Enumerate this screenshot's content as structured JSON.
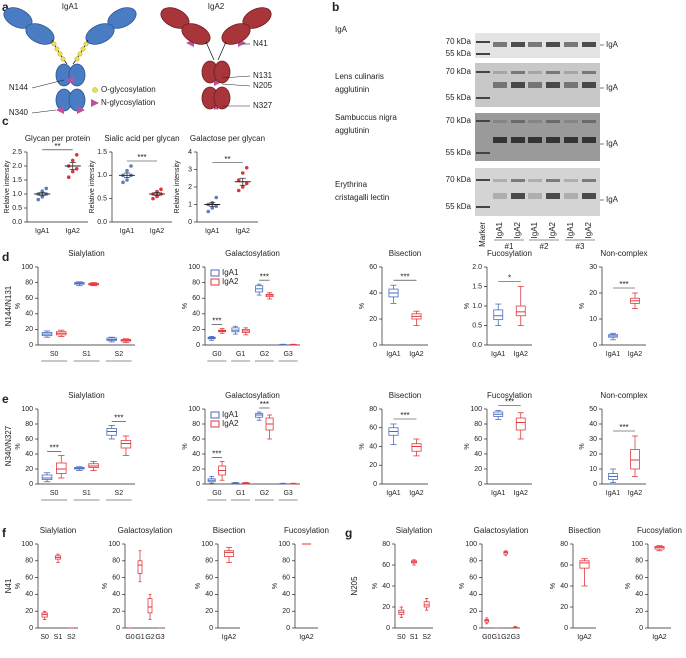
{
  "panel_a": {
    "letter": "a",
    "titles": [
      "IgA1",
      "IgA2"
    ],
    "iga1_sites": [
      "N144",
      "N340"
    ],
    "iga2_sites": [
      "N41",
      "N131",
      "N205",
      "N327"
    ],
    "legend": [
      "O-glycosylation",
      "N-glycosylation"
    ]
  },
  "panel_b": {
    "letter": "b",
    "rows": [
      {
        "label": [
          "IgA"
        ],
        "markers": [
          "70 kDa",
          "55 kDa"
        ],
        "band": "IgA"
      },
      {
        "label": [
          "Lens culinaris",
          "agglutinin"
        ],
        "markers": [
          "70 kDa",
          "55 kDa"
        ],
        "band": "IgA"
      },
      {
        "label": [
          "Sambuccus nigra",
          "agglutinin"
        ],
        "markers": [
          "70 kDa",
          "55 kDa"
        ],
        "band": "IgA"
      },
      {
        "label": [
          "Erythrina",
          "cristagalli lectin"
        ],
        "markers": [
          "70 kDa",
          "55 kDa"
        ],
        "band": "IgA"
      }
    ],
    "lanes": [
      "Marker",
      "IgA1",
      "IgA2",
      "IgA1",
      "IgA2",
      "IgA1",
      "IgA2"
    ],
    "donors": [
      "#1",
      "#2",
      "#3"
    ]
  },
  "panel_c": {
    "letter": "c"
  },
  "rows": [
    {
      "letter": "d",
      "label": "N144/N131"
    },
    {
      "letter": "e",
      "label": "N340/N327"
    },
    {
      "letter": "f",
      "label": "N41"
    },
    {
      "letter": "g",
      "label": "N205"
    }
  ],
  "chart_data": [
    {
      "type": "dot",
      "title": "Glycan per protein",
      "ylabel": "Relative intensity",
      "categories": [
        "IgA1",
        "IgA2"
      ],
      "colors": [
        "#5b7fbf",
        "#d9363e"
      ],
      "points": [
        [
          0.8,
          0.9,
          1.0,
          1.0,
          1.1,
          1.2
        ],
        [
          1.6,
          1.8,
          1.9,
          2.0,
          2.2,
          2.4
        ]
      ],
      "means": [
        1.0,
        2.0
      ],
      "errors": [
        0.06,
        0.12
      ],
      "significance": "**",
      "ylim": [
        0,
        2.5
      ],
      "yticks": [
        {
          "value": 0,
          "label": "0.0"
        },
        0.5,
        {
          "value": 1,
          "label": "1.0"
        },
        1.5,
        {
          "value": 2,
          "label": "2.0"
        },
        2.5
      ]
    },
    {
      "type": "dot",
      "title": "Sialic acid per glycan",
      "ylabel": "Relative intensity",
      "categories": [
        "IgA1",
        "IgA2"
      ],
      "colors": [
        "#5b7fbf",
        "#d9363e"
      ],
      "points": [
        [
          0.85,
          0.9,
          1.0,
          1.0,
          1.1,
          1.2
        ],
        [
          0.5,
          0.55,
          0.6,
          0.6,
          0.65,
          0.7
        ]
      ],
      "means": [
        1.0,
        0.6
      ],
      "errors": [
        0.05,
        0.03
      ],
      "significance": "***",
      "ylim": [
        0,
        1.5
      ],
      "yticks": [
        {
          "value": 0,
          "label": "0.0"
        },
        0.5,
        {
          "value": 1,
          "label": "1.0"
        },
        1.5
      ]
    },
    {
      "type": "dot",
      "title": "Galactose per glycan",
      "ylabel": "Relative intensity",
      "categories": [
        "IgA1",
        "IgA2"
      ],
      "colors": [
        "#5b7fbf",
        "#d9363e"
      ],
      "points": [
        [
          0.6,
          0.8,
          0.9,
          1.0,
          1.1,
          1.4
        ],
        [
          1.8,
          2.0,
          2.2,
          2.4,
          2.8,
          3.1
        ]
      ],
      "means": [
        1.0,
        2.3
      ],
      "errors": [
        0.1,
        0.2
      ],
      "significance": "**",
      "ylim": [
        0,
        4
      ],
      "yticks": [
        0,
        1,
        2,
        3,
        4
      ]
    },
    {
      "type": "box",
      "title": "Sialylation",
      "ylabel": "%",
      "categories": [
        "S0",
        "S1",
        "S2"
      ],
      "series": [
        {
          "name": "IgA1",
          "color": "#4a6cc0",
          "values": [
            [
              10,
              12,
              14,
              16,
              18
            ],
            [
              76,
              78,
              79,
              80,
              81
            ],
            [
              4,
              6,
              7,
              9,
              10
            ]
          ]
        },
        {
          "name": "IgA2",
          "color": "#e0393e",
          "values": [
            [
              11,
              13,
              15,
              17,
              19
            ],
            [
              76,
              77,
              78,
              79,
              80
            ],
            [
              3,
              5,
              6,
              7,
              8
            ]
          ]
        }
      ],
      "significance": [
        null,
        null,
        null
      ],
      "ylim": [
        0,
        100
      ],
      "yticks": [
        0,
        20,
        40,
        60,
        80,
        100
      ]
    },
    {
      "type": "box",
      "title": "Galactosylation",
      "ylabel": "%",
      "categories": [
        "G0",
        "G1",
        "G2",
        "G3"
      ],
      "series": [
        {
          "name": "IgA1",
          "color": "#4a6cc0",
          "values": [
            [
              6,
              8,
              9,
              10,
              11
            ],
            [
              14,
              17,
              19,
              22,
              24
            ],
            [
              64,
              68,
              72,
              76,
              78
            ],
            [
              0,
              0,
              0.2,
              0.5,
              1
            ]
          ]
        },
        {
          "name": "IgA2",
          "color": "#e0393e",
          "values": [
            [
              15,
              17,
              18,
              19,
              21
            ],
            [
              13,
              16,
              18,
              20,
              22
            ],
            [
              59,
              62,
              64,
              65,
              67
            ],
            [
              0,
              0,
              0.2,
              0.5,
              1
            ]
          ]
        }
      ],
      "significance": [
        "***",
        null,
        "***",
        null
      ],
      "legend": "upper left",
      "ylim": [
        0,
        100
      ],
      "yticks": [
        0,
        20,
        40,
        60,
        80,
        100
      ]
    },
    {
      "type": "box",
      "title": "Bisection",
      "ylabel": "%",
      "categories": [
        "IgA1",
        "IgA2"
      ],
      "colors": [
        "#4a6cc0",
        "#e0393e"
      ],
      "values": [
        [
          32,
          37,
          40,
          43,
          46
        ],
        [
          15,
          20,
          22,
          24,
          26
        ]
      ],
      "significance": "***",
      "ylim": [
        0,
        60
      ],
      "yticks": [
        0,
        20,
        40,
        60
      ]
    },
    {
      "type": "box",
      "title": "Fucosylation",
      "ylabel": "%",
      "categories": [
        "IgA1",
        "IgA2"
      ],
      "colors": [
        "#4a6cc0",
        "#e0393e"
      ],
      "values": [
        [
          0.5,
          0.65,
          0.75,
          0.9,
          1.05
        ],
        [
          0.5,
          0.75,
          0.85,
          1.0,
          1.5
        ]
      ],
      "significance": "*",
      "ylim": [
        0,
        2
      ],
      "yticks": [
        {
          "value": 0,
          "label": "0.0"
        },
        0.5,
        {
          "value": 1,
          "label": "1.0"
        },
        1.5,
        {
          "value": 2,
          "label": "2.0"
        }
      ]
    },
    {
      "type": "box",
      "title": "Non-complex",
      "ylabel": "%",
      "categories": [
        "IgA1",
        "IgA2"
      ],
      "colors": [
        "#4a6cc0",
        "#e0393e"
      ],
      "values": [
        [
          2,
          3,
          3.5,
          4,
          4.5
        ],
        [
          14,
          16,
          17,
          18,
          20
        ]
      ],
      "significance": "***",
      "ylim": [
        0,
        30
      ],
      "yticks": [
        0,
        10,
        20,
        30
      ]
    },
    {
      "type": "box",
      "title": "Sialylation",
      "ylabel": "%",
      "categories": [
        "S0",
        "S1",
        "S2"
      ],
      "series": [
        {
          "name": "IgA1",
          "color": "#4a6cc0",
          "values": [
            [
              3,
              6,
              8,
              12,
              15
            ],
            [
              18,
              20,
              21,
              22,
              23
            ],
            [
              60,
              65,
              70,
              74,
              78
            ]
          ]
        },
        {
          "name": "IgA2",
          "color": "#e0393e",
          "values": [
            [
              8,
              14,
              20,
              28,
              38
            ],
            [
              18,
              22,
              24,
              27,
              30
            ],
            [
              38,
              48,
              54,
              58,
              64
            ]
          ]
        }
      ],
      "significance": [
        "***",
        null,
        "***"
      ],
      "ylim": [
        0,
        100
      ],
      "yticks": [
        0,
        20,
        40,
        60,
        80,
        100
      ]
    },
    {
      "type": "box",
      "title": "Galactosylation",
      "ylabel": "%",
      "categories": [
        "G0",
        "G1",
        "G2",
        "G3"
      ],
      "series": [
        {
          "name": "IgA1",
          "color": "#4a6cc0",
          "values": [
            [
              1,
              3,
              5,
              7,
              10
            ],
            [
              0,
              0.5,
              1,
              1.5,
              2
            ],
            [
              85,
              89,
              92,
              94,
              96
            ],
            [
              0,
              0,
              0,
              0.5,
              1
            ]
          ]
        },
        {
          "name": "IgA2",
          "color": "#e0393e",
          "values": [
            [
              5,
              12,
              18,
              24,
              30
            ],
            [
              0,
              0.5,
              1,
              1.5,
              2
            ],
            [
              60,
              72,
              80,
              88,
              92
            ],
            [
              0,
              0,
              0,
              0.5,
              1
            ]
          ]
        }
      ],
      "significance": [
        "***",
        null,
        "***",
        null
      ],
      "legend": "upper left",
      "ylim": [
        0,
        100
      ],
      "yticks": [
        0,
        20,
        40,
        60,
        80,
        100
      ]
    },
    {
      "type": "box",
      "title": "Bisection",
      "ylabel": "%",
      "categories": [
        "IgA1",
        "IgA2"
      ],
      "colors": [
        "#4a6cc0",
        "#e0393e"
      ],
      "values": [
        [
          42,
          52,
          56,
          60,
          64
        ],
        [
          30,
          35,
          40,
          43,
          48
        ]
      ],
      "significance": "***",
      "ylim": [
        0,
        80
      ],
      "yticks": [
        0,
        20,
        40,
        60,
        80
      ]
    },
    {
      "type": "box",
      "title": "Fucosylation",
      "ylabel": "%",
      "categories": [
        "IgA1",
        "IgA2"
      ],
      "colors": [
        "#4a6cc0",
        "#e0393e"
      ],
      "values": [
        [
          86,
          90,
          93,
          96,
          98
        ],
        [
          60,
          72,
          82,
          88,
          95
        ]
      ],
      "significance": "***",
      "ylim": [
        0,
        100
      ],
      "yticks": [
        0,
        20,
        40,
        60,
        80,
        100
      ]
    },
    {
      "type": "box",
      "title": "Non-complex",
      "ylabel": "%",
      "categories": [
        "IgA1",
        "IgA2"
      ],
      "colors": [
        "#4a6cc0",
        "#e0393e"
      ],
      "values": [
        [
          1,
          3,
          5,
          7,
          10
        ],
        [
          5,
          10,
          16,
          23,
          32
        ]
      ],
      "significance": "***",
      "ylim": [
        0,
        50
      ],
      "yticks": [
        0,
        10,
        20,
        30,
        40,
        50
      ]
    },
    {
      "type": "box",
      "title": "Sialylation",
      "ylabel": "%",
      "categories": [
        "S0",
        "S1",
        "S2"
      ],
      "color": "#e0393e",
      "values": [
        [
          10,
          13,
          16,
          18,
          20
        ],
        [
          78,
          82,
          84,
          86,
          88
        ],
        [
          0,
          0,
          0,
          0,
          0
        ]
      ],
      "ylim": [
        0,
        100
      ],
      "yticks": [
        0,
        20,
        40,
        60,
        80,
        100
      ]
    },
    {
      "type": "box",
      "title": "Galactosylation",
      "ylabel": "%",
      "categories": [
        "G0",
        "G1",
        "G2",
        "G3"
      ],
      "color": "#e0393e",
      "values": [
        [
          0,
          0,
          0,
          0,
          0
        ],
        [
          55,
          65,
          75,
          80,
          92
        ],
        [
          10,
          18,
          25,
          35,
          40
        ],
        [
          0,
          0,
          0,
          0,
          0
        ]
      ],
      "ylim": [
        0,
        100
      ],
      "yticks": [
        0,
        20,
        40,
        60,
        80,
        100
      ]
    },
    {
      "type": "box",
      "title": "Bisection",
      "ylabel": "%",
      "categories": [
        "IgA2"
      ],
      "color": "#e0393e",
      "values": [
        [
          78,
          85,
          90,
          92,
          96
        ]
      ],
      "ylim": [
        0,
        100
      ],
      "yticks": [
        0,
        20,
        40,
        60,
        80,
        100
      ]
    },
    {
      "type": "box",
      "title": "Fucosylation",
      "ylabel": "%",
      "categories": [
        "IgA2"
      ],
      "color": "#e0393e",
      "values": [
        [
          100,
          100,
          100,
          100,
          100
        ]
      ],
      "ylim": [
        0,
        100
      ],
      "yticks": [
        0,
        20,
        40,
        60,
        80,
        100
      ]
    },
    {
      "type": "box",
      "title": "Sialylation",
      "ylabel": "%",
      "categories": [
        "S0",
        "S1",
        "S2"
      ],
      "color": "#e0393e",
      "values": [
        [
          10,
          13,
          15,
          17,
          20
        ],
        [
          60,
          62,
          63,
          64,
          65
        ],
        [
          17,
          20,
          22,
          25,
          28
        ]
      ],
      "ylim": [
        0,
        80
      ],
      "yticks": [
        0,
        20,
        40,
        60,
        80
      ]
    },
    {
      "type": "box",
      "title": "Galactosylation",
      "ylabel": "%",
      "categories": [
        "G0",
        "G1",
        "G2",
        "G3"
      ],
      "color": "#e0393e",
      "values": [
        [
          5,
          7,
          9,
          10,
          12
        ],
        [
          0,
          0,
          0,
          0,
          0
        ],
        [
          86,
          88,
          90,
          91,
          92
        ],
        [
          0,
          0,
          0.5,
          1,
          2
        ]
      ],
      "ylim": [
        0,
        100
      ],
      "yticks": [
        0,
        20,
        40,
        60,
        80,
        100
      ]
    },
    {
      "type": "box",
      "title": "Bisection",
      "ylabel": "%",
      "categories": [
        "IgA2"
      ],
      "color": "#e0393e",
      "values": [
        [
          40,
          57,
          62,
          64,
          66
        ]
      ],
      "ylim": [
        0,
        80
      ],
      "yticks": [
        0,
        20,
        40,
        60,
        80
      ]
    },
    {
      "type": "box",
      "title": "Fucosylation",
      "ylabel": "%",
      "categories": [
        "IgA2"
      ],
      "color": "#e0393e",
      "values": [
        [
          92,
          94,
          96,
          97,
          98
        ]
      ],
      "ylim": [
        0,
        100
      ],
      "yticks": [
        0,
        20,
        40,
        60,
        80,
        100
      ]
    }
  ]
}
